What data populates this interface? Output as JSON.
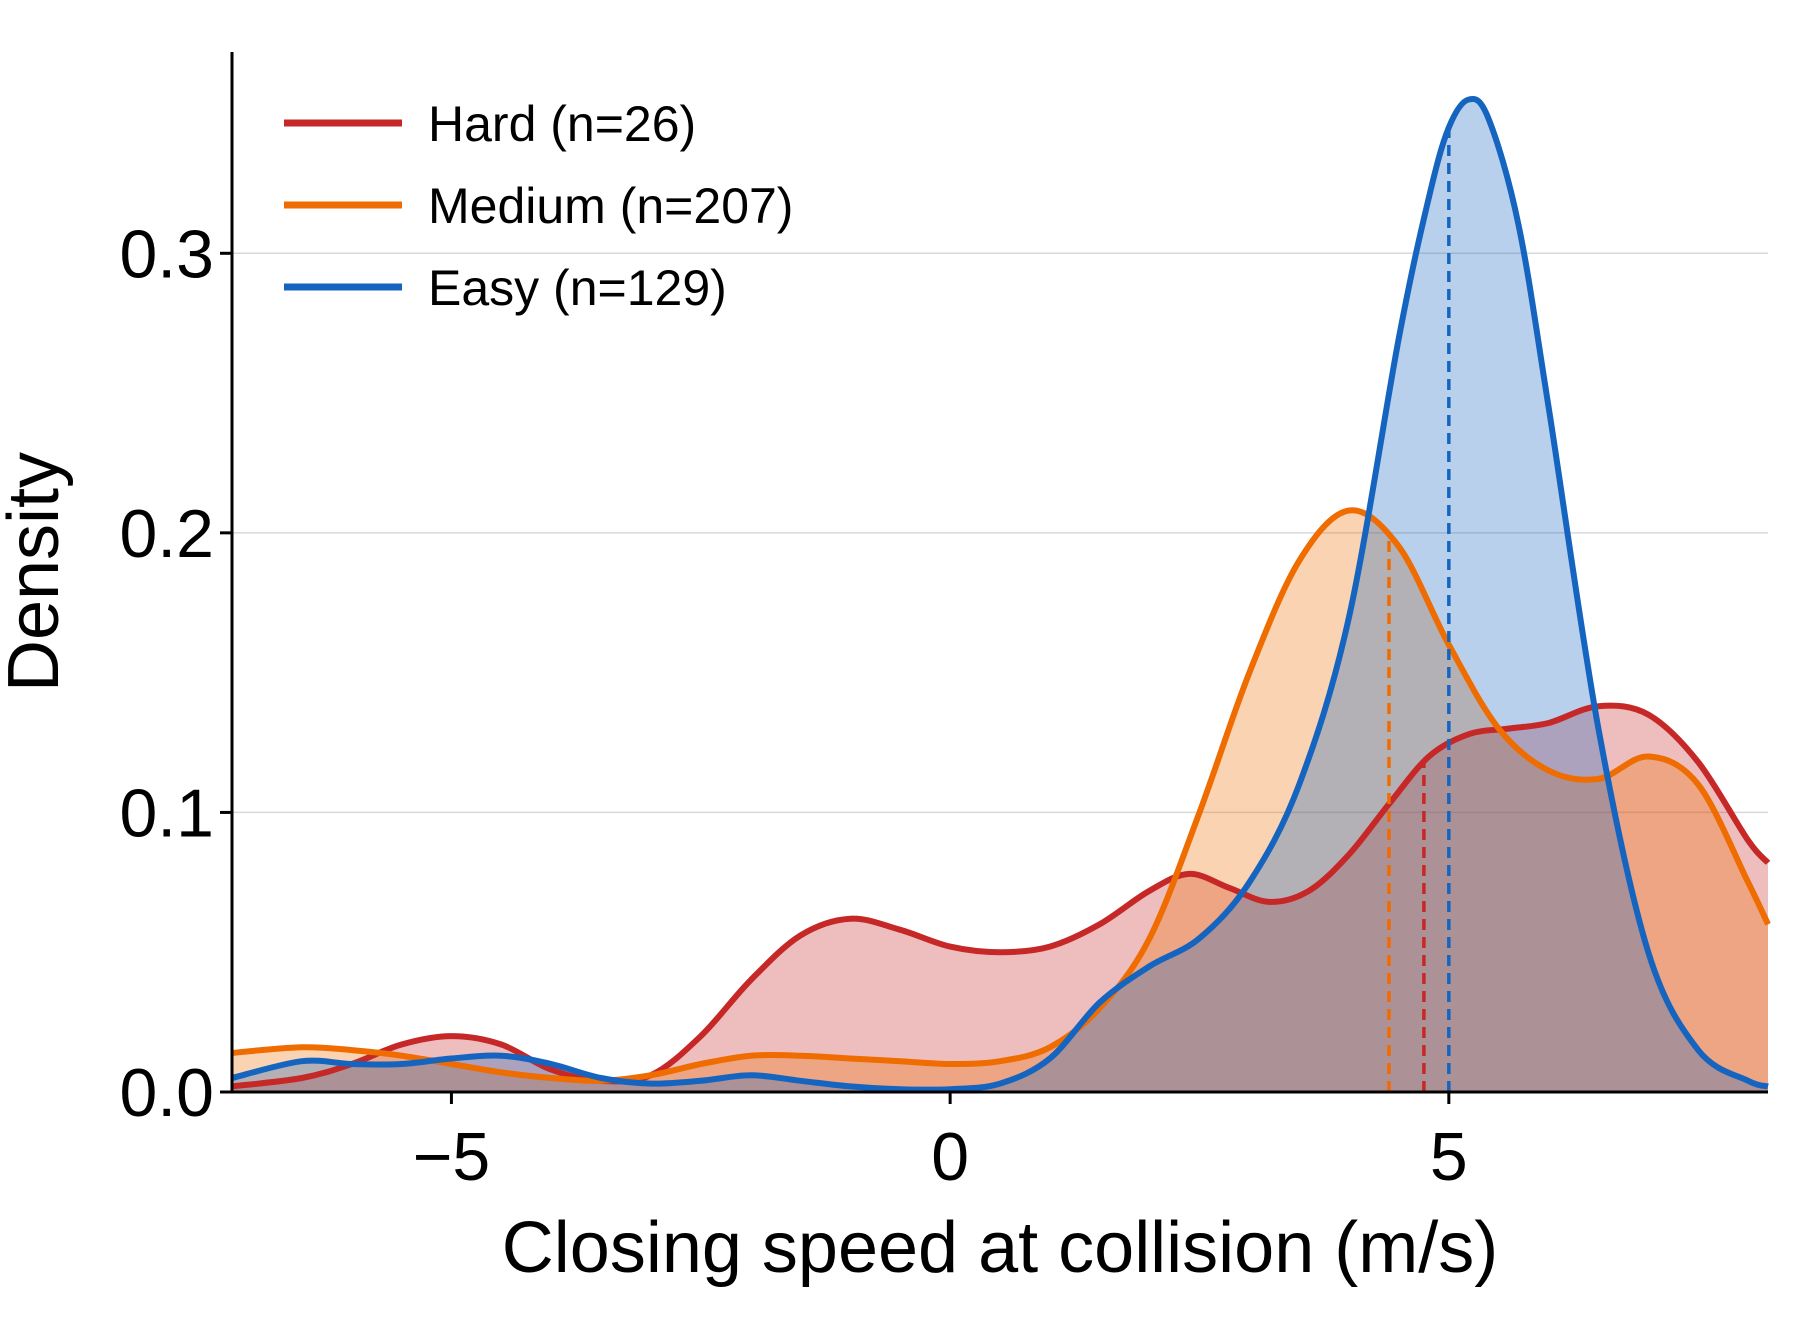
{
  "chart_data": {
    "type": "area",
    "title": "",
    "xlabel": "Closing speed at collision (m/s)",
    "ylabel": "Density",
    "xlim": [
      -7.2,
      8.2
    ],
    "ylim": [
      0,
      0.372
    ],
    "x_ticks": [
      -5,
      0,
      5
    ],
    "x_tick_labels": [
      "−5",
      "0",
      "5"
    ],
    "y_ticks": [
      0.0,
      0.1,
      0.2,
      0.3
    ],
    "y_tick_labels": [
      "0.0",
      "0.1",
      "0.2",
      "0.3"
    ],
    "grid": "horizontal",
    "legend_position": "top-left",
    "series": [
      {
        "name": "Hard (n=26)",
        "color": "#c62828",
        "median_line_x": 4.75,
        "x": [
          -7.2,
          -6.5,
          -6.0,
          -5.5,
          -5.0,
          -4.5,
          -4.0,
          -3.5,
          -3.0,
          -2.5,
          -2.0,
          -1.5,
          -1.0,
          -0.5,
          0.0,
          0.5,
          1.0,
          1.5,
          2.0,
          2.4,
          2.8,
          3.2,
          3.6,
          4.0,
          4.4,
          4.8,
          5.2,
          5.6,
          6.0,
          6.5,
          7.0,
          7.5,
          8.0,
          8.2
        ],
        "y": [
          0.002,
          0.005,
          0.01,
          0.017,
          0.02,
          0.017,
          0.008,
          0.004,
          0.006,
          0.02,
          0.04,
          0.056,
          0.062,
          0.058,
          0.052,
          0.05,
          0.052,
          0.06,
          0.072,
          0.078,
          0.073,
          0.068,
          0.072,
          0.085,
          0.103,
          0.12,
          0.128,
          0.13,
          0.132,
          0.138,
          0.135,
          0.118,
          0.09,
          0.082
        ]
      },
      {
        "name": "Medium (n=207)",
        "color": "#ef6c00",
        "median_line_x": 4.4,
        "x": [
          -7.2,
          -6.5,
          -6.0,
          -5.5,
          -5.0,
          -4.5,
          -4.0,
          -3.5,
          -3.0,
          -2.5,
          -2.0,
          -1.5,
          -1.0,
          -0.5,
          0.0,
          0.5,
          1.0,
          1.5,
          2.0,
          2.5,
          3.0,
          3.5,
          4.0,
          4.5,
          5.0,
          5.5,
          6.0,
          6.5,
          7.0,
          7.5,
          8.0,
          8.2
        ],
        "y": [
          0.014,
          0.016,
          0.015,
          0.013,
          0.01,
          0.007,
          0.005,
          0.004,
          0.006,
          0.01,
          0.013,
          0.013,
          0.012,
          0.011,
          0.01,
          0.011,
          0.016,
          0.03,
          0.055,
          0.1,
          0.15,
          0.19,
          0.208,
          0.195,
          0.16,
          0.13,
          0.115,
          0.112,
          0.12,
          0.11,
          0.075,
          0.06
        ]
      },
      {
        "name": "Easy (n=129)",
        "color": "#1565c0",
        "median_line_x": 5.0,
        "x": [
          -7.2,
          -6.5,
          -6.0,
          -5.5,
          -5.0,
          -4.5,
          -4.0,
          -3.5,
          -3.0,
          -2.5,
          -2.0,
          -1.5,
          -1.0,
          -0.5,
          0.0,
          0.5,
          1.0,
          1.5,
          2.0,
          2.5,
          3.0,
          3.5,
          4.0,
          4.5,
          4.8,
          5.0,
          5.2,
          5.4,
          5.7,
          6.0,
          6.5,
          7.0,
          7.5,
          8.0,
          8.2
        ],
        "y": [
          0.005,
          0.011,
          0.01,
          0.01,
          0.012,
          0.013,
          0.01,
          0.005,
          0.003,
          0.004,
          0.006,
          0.004,
          0.002,
          0.001,
          0.001,
          0.003,
          0.012,
          0.032,
          0.045,
          0.055,
          0.075,
          0.11,
          0.17,
          0.27,
          0.32,
          0.345,
          0.355,
          0.348,
          0.31,
          0.245,
          0.13,
          0.05,
          0.015,
          0.004,
          0.002
        ]
      }
    ]
  }
}
